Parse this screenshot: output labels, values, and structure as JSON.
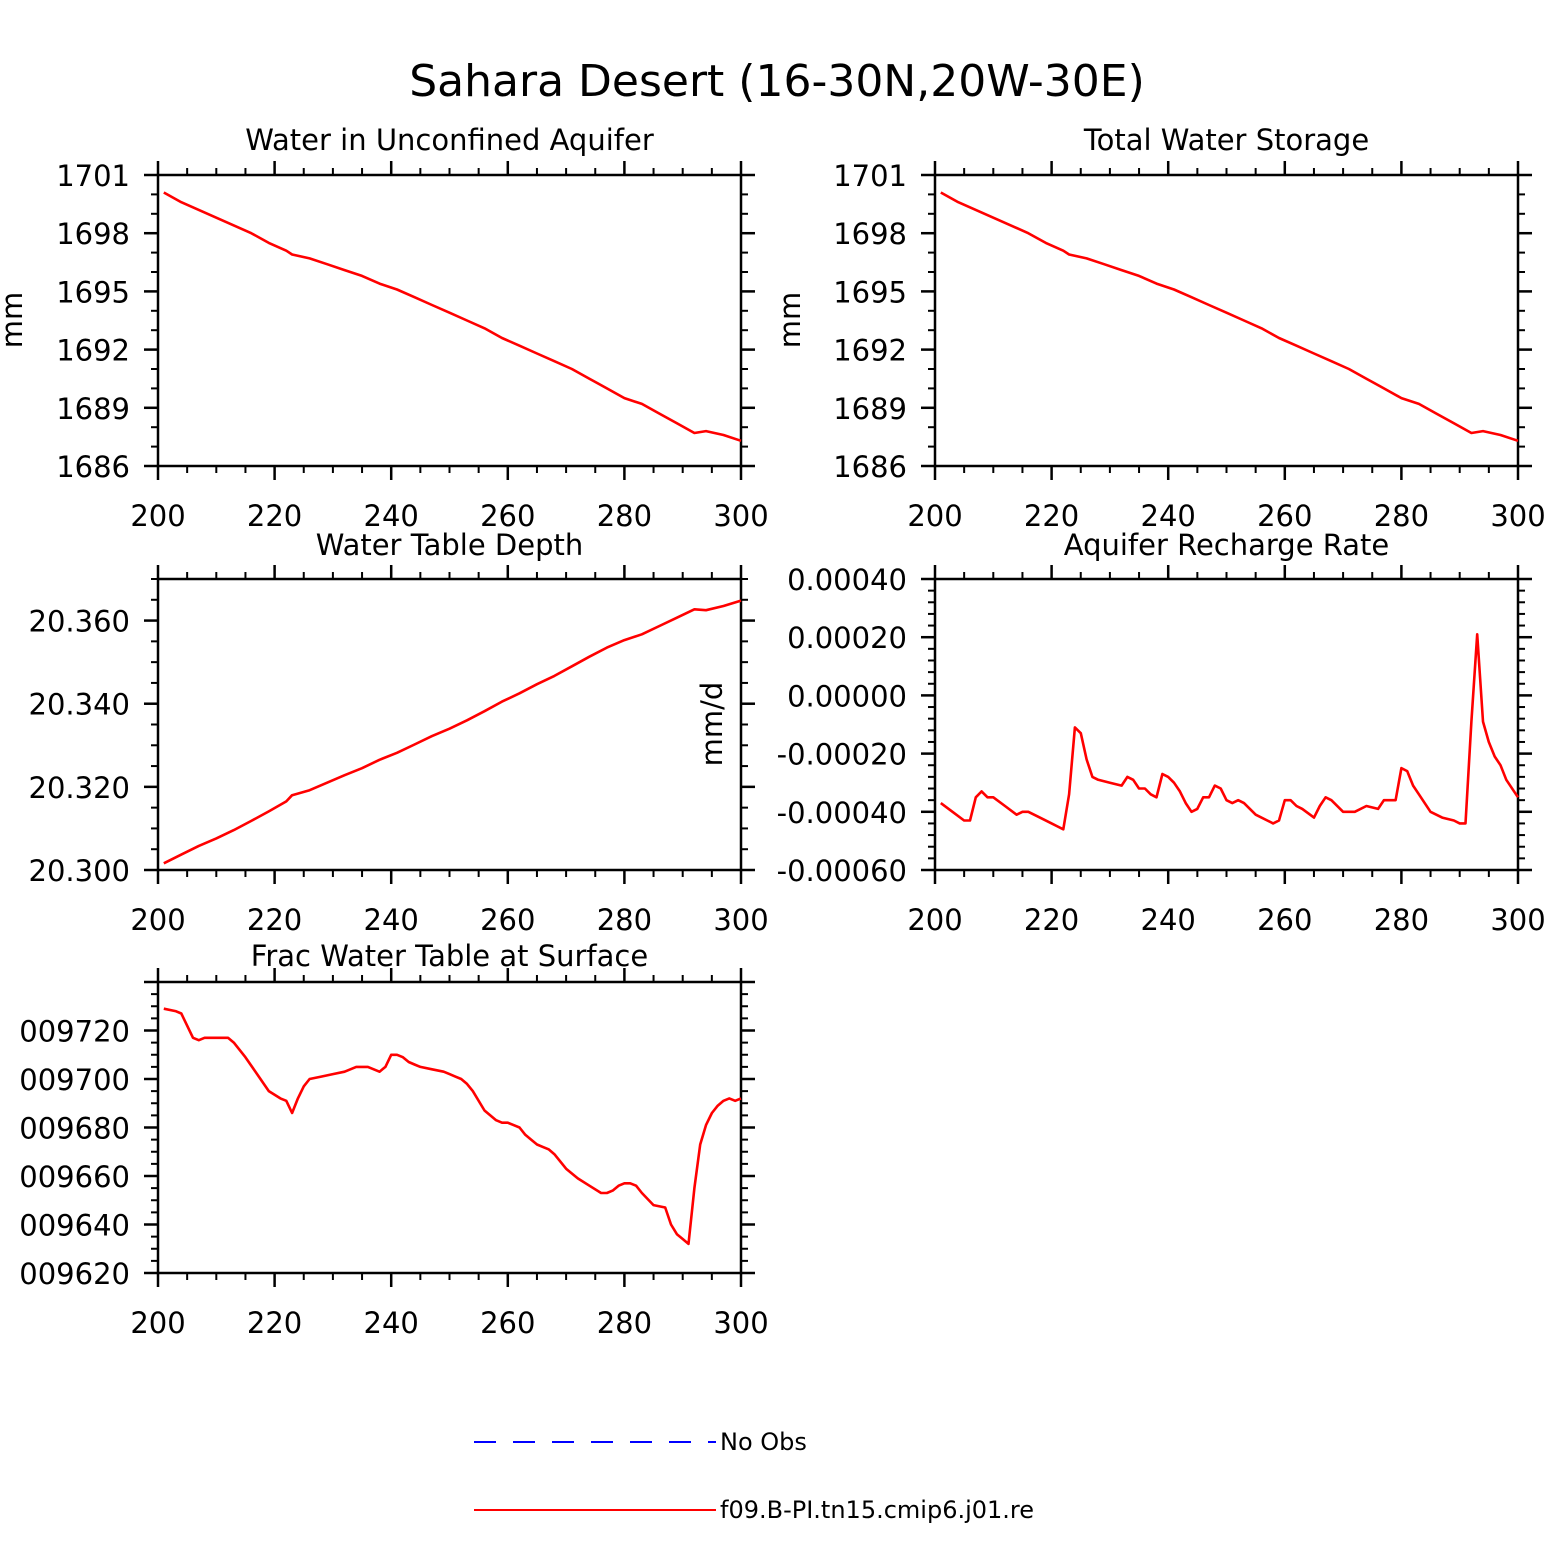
{
  "figure": {
    "title": "Sahara Desert (16-30N,20W-30E)"
  },
  "legend": {
    "entries": [
      {
        "label": "No Obs",
        "color": "#0000ff",
        "style": "dashed"
      },
      {
        "label": "f09.B-PI.tn15.cmip6.j01.re",
        "color": "#ff0000",
        "style": "solid"
      }
    ]
  },
  "chart_data": [
    {
      "type": "line",
      "title": "Water in Unconfined Aquifer",
      "xlabel": "",
      "ylabel": "mm",
      "xlim": [
        200,
        300
      ],
      "ylim": [
        1686,
        1701
      ],
      "xticks": [
        "200",
        "220",
        "240",
        "260",
        "280",
        "300"
      ],
      "yticks": [
        "1686",
        "1689",
        "1692",
        "1695",
        "1698",
        "1701"
      ],
      "series": [
        {
          "color": "#ff0000",
          "x": [
            201,
            204,
            207,
            210,
            213,
            216,
            219,
            222,
            223,
            226,
            229,
            232,
            235,
            238,
            241,
            244,
            247,
            250,
            253,
            256,
            259,
            262,
            265,
            268,
            271,
            274,
            277,
            280,
            283,
            286,
            289,
            292,
            294,
            297,
            300
          ],
          "y": [
            1700.1,
            1699.6,
            1699.2,
            1698.8,
            1698.4,
            1698.0,
            1697.5,
            1697.1,
            1696.9,
            1696.7,
            1696.4,
            1696.1,
            1695.8,
            1695.4,
            1695.1,
            1694.7,
            1694.3,
            1693.9,
            1693.5,
            1693.1,
            1692.6,
            1692.2,
            1691.8,
            1691.4,
            1691.0,
            1690.5,
            1690.0,
            1689.5,
            1689.2,
            1688.7,
            1688.2,
            1687.7,
            1687.8,
            1687.6,
            1687.3
          ]
        }
      ]
    },
    {
      "type": "line",
      "title": "Total Water Storage",
      "xlabel": "",
      "ylabel": "mm",
      "xlim": [
        200,
        300
      ],
      "ylim": [
        1686,
        1701
      ],
      "xticks": [
        "200",
        "220",
        "240",
        "260",
        "280",
        "300"
      ],
      "yticks": [
        "1686",
        "1689",
        "1692",
        "1695",
        "1698",
        "1701"
      ],
      "series": [
        {
          "color": "#ff0000",
          "x": [
            201,
            204,
            207,
            210,
            213,
            216,
            219,
            222,
            223,
            226,
            229,
            232,
            235,
            238,
            241,
            244,
            247,
            250,
            253,
            256,
            259,
            262,
            265,
            268,
            271,
            274,
            277,
            280,
            283,
            286,
            289,
            292,
            294,
            297,
            300
          ],
          "y": [
            1700.1,
            1699.6,
            1699.2,
            1698.8,
            1698.4,
            1698.0,
            1697.5,
            1697.1,
            1696.9,
            1696.7,
            1696.4,
            1696.1,
            1695.8,
            1695.4,
            1695.1,
            1694.7,
            1694.3,
            1693.9,
            1693.5,
            1693.1,
            1692.6,
            1692.2,
            1691.8,
            1691.4,
            1691.0,
            1690.5,
            1690.0,
            1689.5,
            1689.2,
            1688.7,
            1688.2,
            1687.7,
            1687.8,
            1687.6,
            1687.3
          ]
        }
      ]
    },
    {
      "type": "line",
      "title": "Water Table Depth",
      "xlabel": "",
      "ylabel": "",
      "xlim": [
        200,
        300
      ],
      "ylim": [
        20.3,
        20.37
      ],
      "xticks": [
        "200",
        "220",
        "240",
        "260",
        "280",
        "300"
      ],
      "yticks": [
        "20.300",
        "20.320",
        "20.340",
        "20.360"
      ],
      "series": [
        {
          "color": "#ff0000",
          "x": [
            201,
            204,
            207,
            210,
            213,
            216,
            219,
            222,
            223,
            226,
            229,
            232,
            235,
            238,
            241,
            244,
            247,
            250,
            253,
            256,
            259,
            262,
            265,
            268,
            271,
            274,
            277,
            280,
            283,
            286,
            289,
            292,
            294,
            297,
            300
          ],
          "y": [
            20.3016,
            20.3037,
            20.3058,
            20.3076,
            20.3096,
            20.3118,
            20.3141,
            20.3165,
            20.318,
            20.3192,
            20.321,
            20.3228,
            20.3245,
            20.3265,
            20.3282,
            20.3302,
            20.3322,
            20.334,
            20.336,
            20.3382,
            20.3405,
            20.3425,
            20.3447,
            20.3467,
            20.349,
            20.3513,
            20.3535,
            20.3553,
            20.3567,
            20.3587,
            20.3607,
            20.3627,
            20.3625,
            20.3635,
            20.3648
          ]
        }
      ]
    },
    {
      "type": "line",
      "title": "Aquifer Recharge Rate",
      "xlabel": "",
      "ylabel": "mm/d",
      "xlim": [
        200,
        300
      ],
      "ylim": [
        -0.0006,
        0.0004
      ],
      "xticks": [
        "200",
        "220",
        "240",
        "260",
        "280",
        "300"
      ],
      "yticks": [
        "-0.00060",
        "-0.00040",
        "-0.00020",
        "0.00000",
        "0.00020",
        "0.00040"
      ],
      "series": [
        {
          "color": "#ff0000",
          "x": [
            201,
            203,
            205,
            206,
            207,
            208,
            209,
            210,
            212,
            214,
            215,
            216,
            218,
            220,
            221,
            222,
            223,
            224,
            225,
            226,
            227,
            228,
            230,
            232,
            233,
            234,
            235,
            236,
            237,
            238,
            239,
            240,
            241,
            242,
            243,
            244,
            245,
            246,
            247,
            248,
            249,
            250,
            251,
            252,
            253,
            255,
            257,
            258,
            259,
            260,
            261,
            262,
            263,
            265,
            266,
            267,
            268,
            270,
            272,
            274,
            276,
            277,
            279,
            280,
            281,
            282,
            283,
            285,
            287,
            289,
            290,
            291,
            292,
            293,
            294,
            295,
            296,
            297,
            298,
            300
          ],
          "y": [
            -0.00037,
            -0.0004,
            -0.00043,
            -0.00043,
            -0.00035,
            -0.00033,
            -0.00035,
            -0.00035,
            -0.00038,
            -0.00041,
            -0.0004,
            -0.0004,
            -0.00042,
            -0.00044,
            -0.00045,
            -0.00046,
            -0.00034,
            -0.00011,
            -0.00013,
            -0.00022,
            -0.00028,
            -0.00029,
            -0.0003,
            -0.00031,
            -0.00028,
            -0.00029,
            -0.00032,
            -0.00032,
            -0.00034,
            -0.00035,
            -0.00027,
            -0.00028,
            -0.0003,
            -0.00033,
            -0.00037,
            -0.0004,
            -0.00039,
            -0.00035,
            -0.00035,
            -0.00031,
            -0.00032,
            -0.00036,
            -0.00037,
            -0.00036,
            -0.00037,
            -0.00041,
            -0.00043,
            -0.00044,
            -0.00043,
            -0.00036,
            -0.00036,
            -0.00038,
            -0.00039,
            -0.00042,
            -0.00038,
            -0.00035,
            -0.00036,
            -0.0004,
            -0.0004,
            -0.00038,
            -0.00039,
            -0.00036,
            -0.00036,
            -0.00025,
            -0.00026,
            -0.00031,
            -0.00034,
            -0.0004,
            -0.00042,
            -0.00043,
            -0.00044,
            -0.00044,
            -9e-05,
            0.00021,
            -9e-05,
            -0.00016,
            -0.00021,
            -0.00024,
            -0.00029,
            -0.00035
          ]
        }
      ]
    },
    {
      "type": "line",
      "title": "Frac Water Table at Surface",
      "xlabel": "",
      "ylabel": "",
      "xlim": [
        200,
        300
      ],
      "ylim": [
        0.00962,
        0.00974
      ],
      "xticks": [
        "200",
        "220",
        "240",
        "260",
        "280",
        "300"
      ],
      "yticks": [
        "009620",
        "009640",
        "009660",
        "009680",
        "009700",
        "009720"
      ],
      "series": [
        {
          "color": "#ff0000",
          "x": [
            201,
            203,
            204,
            206,
            207,
            208,
            210,
            212,
            213,
            215,
            217,
            219,
            221,
            222,
            223,
            224,
            225,
            226,
            228,
            230,
            232,
            234,
            236,
            237,
            238,
            239,
            240,
            241,
            242,
            243,
            244,
            245,
            247,
            249,
            250,
            251,
            252,
            253,
            254,
            256,
            258,
            259,
            260,
            261,
            262,
            263,
            264,
            265,
            266,
            267,
            268,
            270,
            272,
            274,
            276,
            277,
            278,
            279,
            280,
            281,
            282,
            283,
            285,
            287,
            288,
            289,
            290,
            291,
            292,
            293,
            294,
            295,
            296,
            297,
            298,
            299,
            300
          ],
          "y": [
            0.009729,
            0.009728,
            0.009727,
            0.009717,
            0.009716,
            0.009717,
            0.009717,
            0.009717,
            0.009715,
            0.009709,
            0.009702,
            0.009695,
            0.009692,
            0.009691,
            0.009686,
            0.009692,
            0.009697,
            0.0097,
            0.009701,
            0.009702,
            0.009703,
            0.009705,
            0.009705,
            0.009704,
            0.009703,
            0.009705,
            0.00971,
            0.00971,
            0.009709,
            0.009707,
            0.009706,
            0.009705,
            0.009704,
            0.009703,
            0.009702,
            0.009701,
            0.0097,
            0.009698,
            0.009695,
            0.009687,
            0.009683,
            0.009682,
            0.009682,
            0.009681,
            0.00968,
            0.009677,
            0.009675,
            0.009673,
            0.009672,
            0.009671,
            0.009669,
            0.009663,
            0.009659,
            0.009656,
            0.009653,
            0.009653,
            0.009654,
            0.009656,
            0.009657,
            0.009657,
            0.009656,
            0.009653,
            0.009648,
            0.009647,
            0.00964,
            0.009636,
            0.009634,
            0.009632,
            0.009655,
            0.009673,
            0.009681,
            0.009686,
            0.009689,
            0.009691,
            0.009692,
            0.009691,
            0.009692
          ]
        }
      ]
    }
  ]
}
